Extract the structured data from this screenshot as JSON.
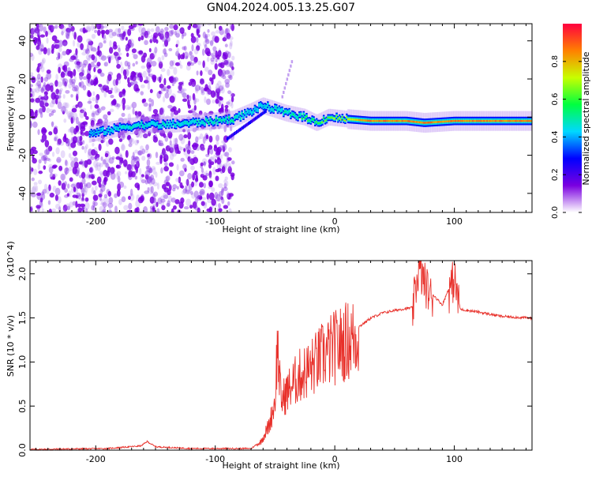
{
  "figure": {
    "title": "GN04.2024.005.13.25.G07"
  },
  "chart_data": [
    {
      "type": "heatmap",
      "xlabel": "Height of straight line (km)",
      "ylabel": "Frequency (Hz)",
      "xlim": [
        -255,
        165
      ],
      "ylim": [
        -50,
        49
      ],
      "xticks": [
        -200,
        -100,
        0,
        100
      ],
      "yticks": [
        -40,
        -20,
        0,
        20,
        40
      ],
      "colorbar": {
        "label": "Normalized spectral amplitude",
        "range": [
          0,
          1
        ],
        "ticks": [
          "0.0",
          "0.2",
          "0.4",
          "0.6",
          "0.8"
        ],
        "colors": [
          "#ffffff",
          "#7a00e0",
          "#0000ff",
          "#00d8ff",
          "#00ff40",
          "#c8ff00",
          "#ff8000",
          "#ff0040"
        ]
      },
      "ridge": [
        [
          -205,
          -9,
          0.35
        ],
        [
          -190,
          -7,
          0.4
        ],
        [
          -175,
          -5,
          0.45
        ],
        [
          -160,
          -4,
          0.45
        ],
        [
          -140,
          -4,
          0.45
        ],
        [
          -120,
          -3,
          0.45
        ],
        [
          -100,
          -2,
          0.5
        ],
        [
          -85,
          -1,
          0.5
        ],
        [
          -70,
          3,
          0.4
        ],
        [
          -60,
          6,
          0.4
        ],
        [
          -50,
          4,
          0.45
        ],
        [
          -40,
          2,
          0.5
        ],
        [
          -25,
          0,
          0.55
        ],
        [
          -15,
          -3,
          0.6
        ],
        [
          -5,
          0,
          0.65
        ],
        [
          10,
          -1,
          0.7
        ],
        [
          30,
          -2,
          0.85
        ],
        [
          60,
          -2,
          0.85
        ],
        [
          75,
          -3,
          0.85
        ],
        [
          100,
          -2,
          0.85
        ],
        [
          130,
          -2,
          0.85
        ],
        [
          165,
          -2,
          0.85
        ]
      ]
    },
    {
      "type": "line",
      "xlabel": "Height of straight line (km)",
      "ylabel": "SNR (10 * v/v)",
      "exponent_label": "(x10^4)",
      "xlim": [
        -255,
        165
      ],
      "ylim": [
        0,
        2.15
      ],
      "xticks": [
        -200,
        -100,
        0,
        100
      ],
      "yticks": [
        0.0,
        0.5,
        1.0,
        1.5,
        2.0
      ],
      "color": "#e8302a",
      "envelope": [
        [
          -255,
          0.01
        ],
        [
          -190,
          0.02
        ],
        [
          -162,
          0.05
        ],
        [
          -157,
          0.1
        ],
        [
          -150,
          0.04
        ],
        [
          -120,
          0.02
        ],
        [
          -70,
          0.02
        ],
        [
          -62,
          0.1
        ],
        [
          -55,
          0.3
        ],
        [
          -50,
          0.6
        ],
        [
          -48,
          1.3
        ],
        [
          -45,
          0.6
        ],
        [
          -38,
          0.75
        ],
        [
          -30,
          0.9
        ],
        [
          -20,
          1.0
        ],
        [
          -10,
          1.15
        ],
        [
          0,
          1.25
        ],
        [
          10,
          1.33
        ],
        [
          20,
          1.4
        ],
        [
          30,
          1.5
        ],
        [
          40,
          1.56
        ],
        [
          55,
          1.6
        ],
        [
          65,
          1.62
        ],
        [
          70,
          2.1
        ],
        [
          80,
          1.8
        ],
        [
          90,
          1.65
        ],
        [
          100,
          2.0
        ],
        [
          105,
          1.6
        ],
        [
          120,
          1.57
        ],
        [
          140,
          1.52
        ],
        [
          165,
          1.5
        ]
      ]
    }
  ]
}
